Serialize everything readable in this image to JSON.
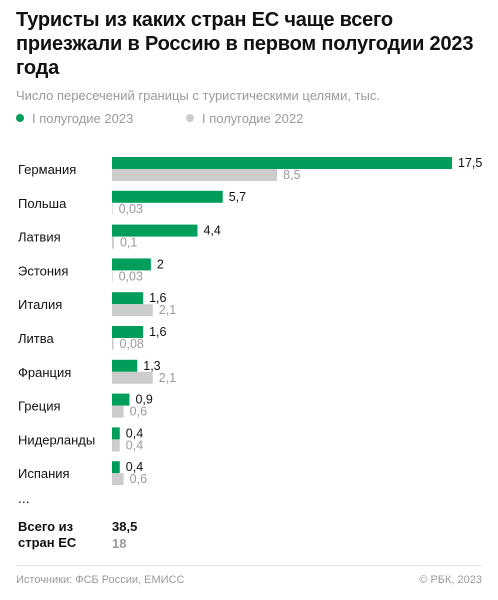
{
  "title": "Туристы из каких стран ЕС чаще всего приезжали в Россию в первом полугодии 2023 года",
  "subtitle": "Число пересечений границы с туристическими целями, тыс.",
  "legend": {
    "first": "I полугодие 2023",
    "second": "I полугодие 2022"
  },
  "ellipsis": "...",
  "total": {
    "label": "Всего из стран ЕС",
    "value_2023": "38,5",
    "value_2022": "18"
  },
  "footer": {
    "sources": "Источники: ФСБ России, ЕМИСС",
    "copyright": "© РБК, 2023"
  },
  "colors": {
    "series_2023": "#009e5a",
    "series_2022": "#cccccc",
    "label_2022": "#9a9a9a"
  },
  "chart_data": {
    "type": "bar",
    "orientation": "horizontal",
    "categories": [
      "Германия",
      "Польша",
      "Латвия",
      "Эстония",
      "Италия",
      "Литва",
      "Франция",
      "Греция",
      "Нидерланды",
      "Испания"
    ],
    "series": [
      {
        "name": "I полугодие 2023",
        "values": [
          17.5,
          5.7,
          4.4,
          2,
          1.6,
          1.6,
          1.3,
          0.9,
          0.4,
          0.4
        ],
        "labels": [
          "17,5",
          "5,7",
          "4,4",
          "2",
          "1,6",
          "1,6",
          "1,3",
          "0,9",
          "0,4",
          "0,4"
        ]
      },
      {
        "name": "I полугодие 2022",
        "values": [
          8.5,
          0.03,
          0.1,
          0.03,
          2.1,
          0.08,
          2.1,
          0.6,
          0.4,
          0.6
        ],
        "labels": [
          "8,5",
          "0,03",
          "0,1",
          "0,03",
          "2,1",
          "0,08",
          "2,1",
          "0,6",
          "0,4",
          "0,6"
        ]
      }
    ],
    "xlim": [
      0,
      17.5
    ],
    "grid": false,
    "legend_position": "top-left"
  }
}
